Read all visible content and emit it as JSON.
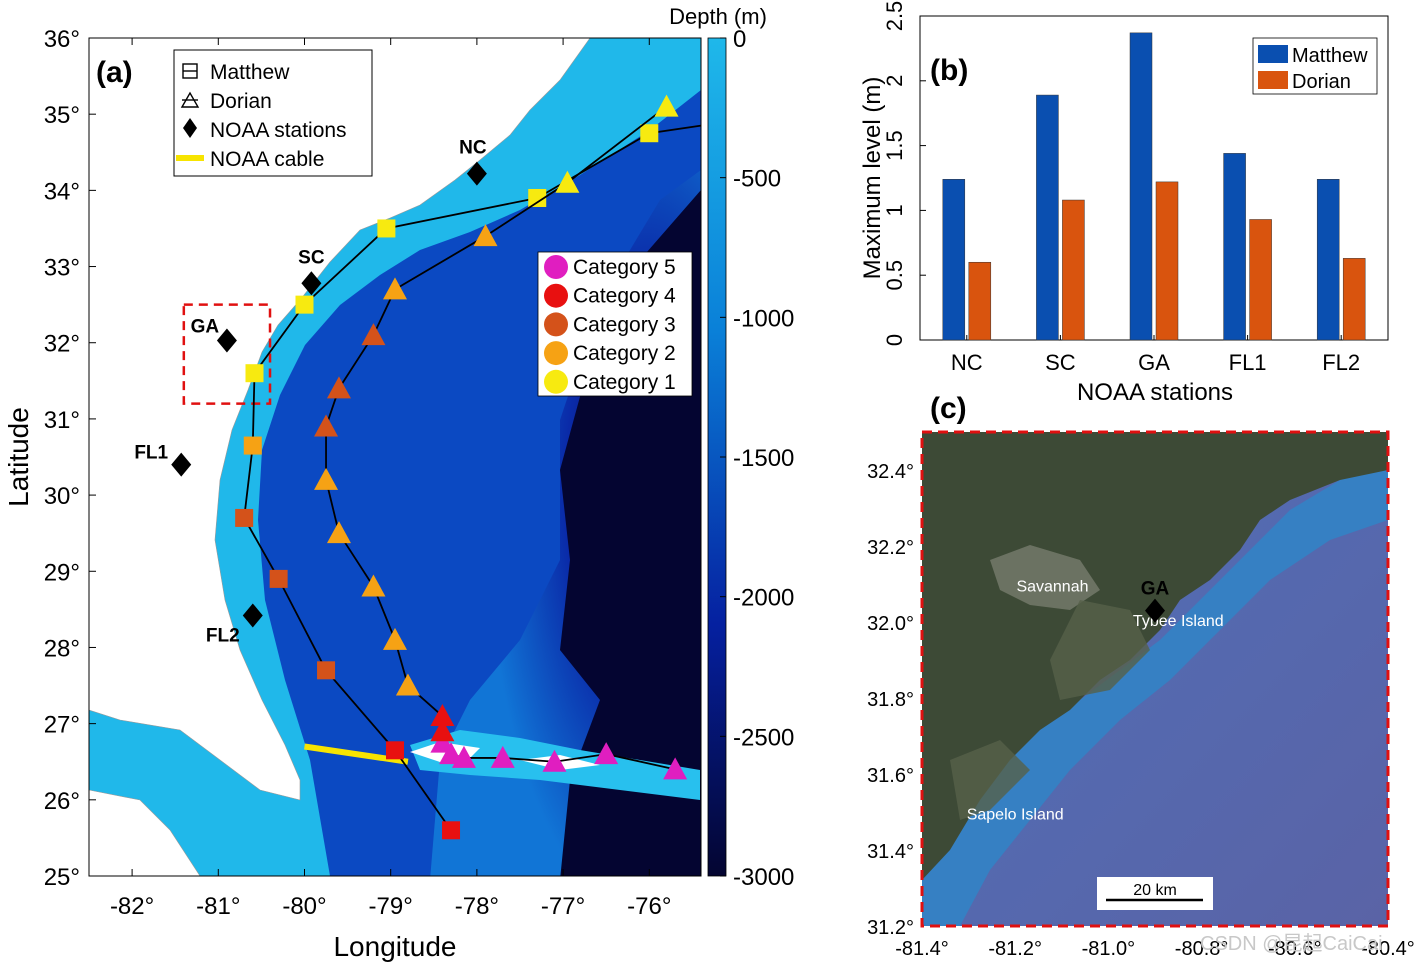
{
  "panel_a": {
    "label": "(a)",
    "xlabel": "Longitude",
    "ylabel": "Latitude",
    "x_ticks": [
      "-82°",
      "-81°",
      "-80°",
      "-79°",
      "-78°",
      "-77°",
      "-76°"
    ],
    "y_ticks": [
      "25°",
      "26°",
      "27°",
      "28°",
      "29°",
      "30°",
      "31°",
      "32°",
      "33°",
      "34°",
      "35°",
      "36°"
    ],
    "colorbar": {
      "title": "Depth (m)",
      "ticks": [
        "0",
        "-500",
        "-1000",
        "-1500",
        "-2000",
        "-2500",
        "-3000"
      ],
      "color_shallow": "#1fb8ea",
      "color_deep": "#040531"
    },
    "legend": [
      {
        "label": "Matthew",
        "icon": "square-outline-icon"
      },
      {
        "label": "Dorian",
        "icon": "triangle-outline-icon"
      },
      {
        "label": "NOAA stations",
        "icon": "black-diamond-icon"
      },
      {
        "label": "NOAA cable",
        "icon": "yellow-line-icon"
      }
    ],
    "category_legend": [
      {
        "label": "Category 5",
        "color": "#e01ec0"
      },
      {
        "label": "Category 4",
        "color": "#e81010"
      },
      {
        "label": "Category 3",
        "color": "#d4521a"
      },
      {
        "label": "Category 2",
        "color": "#f6a214"
      },
      {
        "label": "Category 1",
        "color": "#f7ea10"
      }
    ],
    "stations": [
      {
        "name": "NC",
        "lon": -78.0,
        "lat": 34.22
      },
      {
        "name": "SC",
        "lon": -79.92,
        "lat": 32.78
      },
      {
        "name": "GA",
        "lon": -80.9,
        "lat": 32.03
      },
      {
        "name": "FL1",
        "lon": -81.43,
        "lat": 30.4
      },
      {
        "name": "FL2",
        "lon": -80.6,
        "lat": 28.42
      }
    ],
    "cable": {
      "lon": [
        -80.0,
        -78.8
      ],
      "lat": [
        26.7,
        26.5
      ]
    },
    "box": {
      "lon": [
        -81.4,
        -80.4
      ],
      "lat": [
        31.2,
        32.5
      ]
    },
    "matthew_track": [
      {
        "lon": -78.3,
        "lat": 25.6,
        "cat": 4
      },
      {
        "lon": -78.95,
        "lat": 26.65,
        "cat": 4
      },
      {
        "lon": -79.75,
        "lat": 27.7,
        "cat": 3
      },
      {
        "lon": -80.3,
        "lat": 28.9,
        "cat": 3
      },
      {
        "lon": -80.7,
        "lat": 29.7,
        "cat": 3
      },
      {
        "lon": -80.6,
        "lat": 30.65,
        "cat": 2
      },
      {
        "lon": -80.58,
        "lat": 31.6,
        "cat": 1
      },
      {
        "lon": -80.0,
        "lat": 32.5,
        "cat": 1
      },
      {
        "lon": -79.05,
        "lat": 33.5,
        "cat": 1
      },
      {
        "lon": -77.3,
        "lat": 33.9,
        "cat": 1
      },
      {
        "lon": -76.0,
        "lat": 34.75,
        "cat": 1
      }
    ],
    "matthew_track_end": {
      "lon": -75.4,
      "lat": 34.85
    },
    "dorian_track": [
      {
        "lon": -75.7,
        "lat": 26.4,
        "cat": 5
      },
      {
        "lon": -76.5,
        "lat": 26.6,
        "cat": 5
      },
      {
        "lon": -77.1,
        "lat": 26.5,
        "cat": 5
      },
      {
        "lon": -77.7,
        "lat": 26.55,
        "cat": 5
      },
      {
        "lon": -78.15,
        "lat": 26.55,
        "cat": 5
      },
      {
        "lon": -78.3,
        "lat": 26.6,
        "cat": 5
      },
      {
        "lon": -78.4,
        "lat": 26.75,
        "cat": 5
      },
      {
        "lon": -78.4,
        "lat": 26.9,
        "cat": 4
      },
      {
        "lon": -78.4,
        "lat": 27.1,
        "cat": 4
      },
      {
        "lon": -78.8,
        "lat": 27.5,
        "cat": 2
      },
      {
        "lon": -78.95,
        "lat": 28.1,
        "cat": 2
      },
      {
        "lon": -79.2,
        "lat": 28.8,
        "cat": 2
      },
      {
        "lon": -79.6,
        "lat": 29.5,
        "cat": 2
      },
      {
        "lon": -79.75,
        "lat": 30.2,
        "cat": 2
      },
      {
        "lon": -79.75,
        "lat": 30.9,
        "cat": 3
      },
      {
        "lon": -79.6,
        "lat": 31.4,
        "cat": 3
      },
      {
        "lon": -79.2,
        "lat": 32.1,
        "cat": 3
      },
      {
        "lon": -78.95,
        "lat": 32.7,
        "cat": 2
      },
      {
        "lon": -77.9,
        "lat": 33.4,
        "cat": 2
      },
      {
        "lon": -76.95,
        "lat": 34.1,
        "cat": 1
      },
      {
        "lon": -75.8,
        "lat": 35.1,
        "cat": 1
      }
    ]
  },
  "chart_data": {
    "type": "bar",
    "label": "(b)",
    "categories": [
      "NC",
      "SC",
      "GA",
      "FL1",
      "FL2"
    ],
    "series": [
      {
        "name": "Matthew",
        "values": [
          1.24,
          1.89,
          2.37,
          1.44,
          1.24
        ],
        "color": "#0a4fb0"
      },
      {
        "name": "Dorian",
        "values": [
          0.6,
          1.08,
          1.22,
          0.93,
          0.63
        ],
        "color": "#d9540e"
      }
    ],
    "xlabel": "NOAA stations",
    "ylabel": "Maximum level (m)",
    "ylim": [
      0,
      2.5
    ],
    "yticks": [
      "0",
      "0.5",
      "1",
      "1.5",
      "2",
      "2.5"
    ],
    "legend_position": "top-right"
  },
  "panel_c": {
    "label": "(c)",
    "x_ticks": [
      "-81.4°",
      "-81.2°",
      "-81.0°",
      "-80.8°",
      "-80.6°",
      "-80.4°"
    ],
    "y_ticks": [
      "31.2°",
      "31.4°",
      "31.6°",
      "31.8°",
      "32.0°",
      "32.2°",
      "32.4°"
    ],
    "place_labels": [
      {
        "text": "Savannah",
        "lon": -81.12,
        "lat": 32.08
      },
      {
        "text": "Tybee Island",
        "lon": -80.85,
        "lat": 31.99
      },
      {
        "text": "Sapelo Island",
        "lon": -81.2,
        "lat": 31.48
      }
    ],
    "station": {
      "name": "GA",
      "lon": -80.9,
      "lat": 32.03
    },
    "scale_bar": "20 km",
    "land_color": "#3d4a36",
    "water_color": "#5864a8"
  },
  "watermark": "CSDN @昆起CaiCai"
}
